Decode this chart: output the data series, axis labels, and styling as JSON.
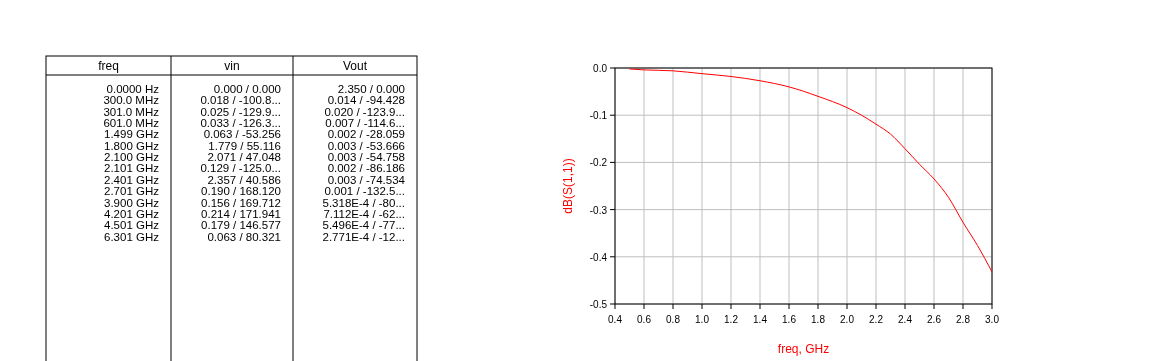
{
  "chart_data": [
    {
      "type": "other",
      "categories": [
        "freq",
        "vin",
        "Vout"
      ],
      "annotations": [
        "0.0000 Hz",
        "0.000 / 0.000",
        "2.350 / 0.000",
        "300.0 MHz",
        "0.018 / -100.8...",
        "0.014 / -94.428",
        "301.0 MHz",
        "0.025 / -129.9...",
        "0.020 / -123.9...",
        "601.0 MHz",
        "0.033 / -126.3...",
        "0.007 / -114.6...",
        "1.499 GHz",
        "0.063 / -53.256",
        "0.002 / -28.059",
        "1.800 GHz",
        "1.779 / 55.116",
        "0.003 / -53.666",
        "2.100 GHz",
        "2.071 / 47.048",
        "0.003 / -54.758",
        "2.101 GHz",
        "0.129 / -125.0...",
        "0.002 / -86.186",
        "2.401 GHz",
        "2.357 / 40.586",
        "0.003 / -74.534",
        "2.701 GHz",
        "0.190 / 168.120",
        "0.001 / -132.5...",
        "3.900 GHz",
        "0.156 / 169.712",
        "5.318E-4 / -80...",
        "4.201 GHz",
        "0.214 / 171.941",
        "7.112E-4 / -62...",
        "4.501 GHz",
        "0.179 / 146.577",
        "5.496E-4 / -77...",
        "6.301 GHz",
        "0.063 / 80.321",
        "2.771E-4 / -12..."
      ]
    },
    {
      "type": "line",
      "xlabel": "freq, GHz",
      "ylabel": "dB(S(1,1))",
      "grid": true,
      "x": [
        0.5,
        0.6,
        0.8,
        1.0,
        1.2,
        1.4,
        1.6,
        1.8,
        2.0,
        2.1,
        2.2,
        2.3,
        2.4,
        2.5,
        2.6,
        2.7,
        2.8,
        2.9,
        3.0
      ],
      "series": [
        {
          "color": "#ff0000",
          "values": [
            -0.002,
            -0.004,
            -0.006,
            -0.012,
            -0.018,
            -0.027,
            -0.04,
            -0.06,
            -0.084,
            -0.1,
            -0.119,
            -0.14,
            -0.171,
            -0.204,
            -0.235,
            -0.274,
            -0.327,
            -0.376,
            -0.432
          ]
        }
      ],
      "xlim": [
        0.4,
        3.0
      ],
      "xticks": [
        0.4,
        0.6,
        0.8,
        {
          "value": 1,
          "label": "1.0"
        },
        1.2,
        1.4,
        1.6,
        1.8,
        {
          "value": 2,
          "label": "2.0"
        },
        2.2,
        2.4,
        2.6,
        2.8,
        {
          "value": 3,
          "label": "3.0"
        }
      ],
      "ylim": [
        -0.5,
        0
      ],
      "yticks": [
        {
          "value": 0,
          "label": "0.0"
        },
        -0.1,
        -0.2,
        -0.3,
        -0.4,
        -0.5
      ]
    }
  ]
}
